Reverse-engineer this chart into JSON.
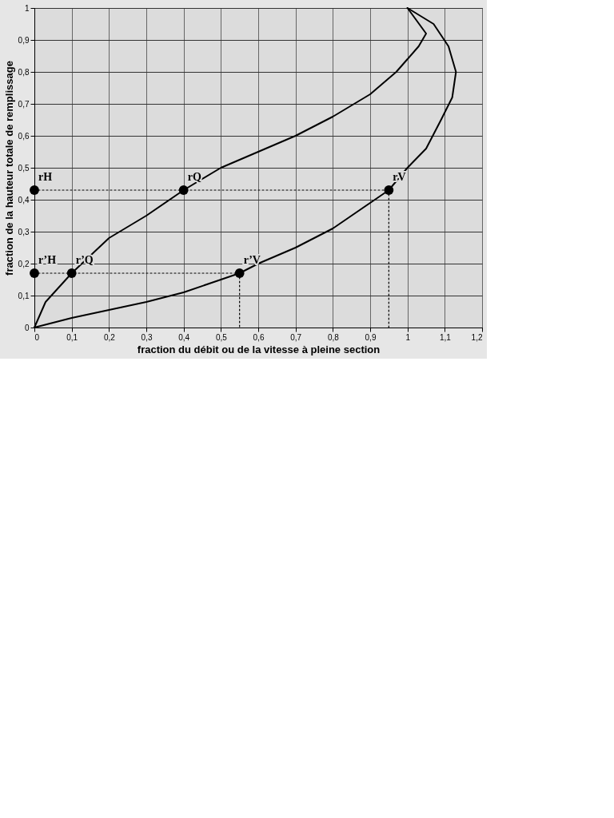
{
  "chart_data": {
    "type": "line",
    "xlabel": "fraction du débit ou de la vitesse à pleine section",
    "ylabel": "fraction de la hauteur totale de remplissage",
    "xlim": [
      0,
      1.2
    ],
    "xticks": [
      0,
      {
        "value": 0.1,
        "label": "0,1"
      },
      {
        "value": 0.2,
        "label": "0,2"
      },
      {
        "value": 0.3,
        "label": "0,3"
      },
      {
        "value": 0.4,
        "label": "0,4"
      },
      {
        "value": 0.5,
        "label": "0,5"
      },
      {
        "value": 0.6,
        "label": "0,6"
      },
      {
        "value": 0.7,
        "label": "0,7"
      },
      {
        "value": 0.8,
        "label": "0,8"
      },
      {
        "value": 0.9,
        "label": "0,9"
      },
      1,
      {
        "value": 1.1,
        "label": "1,1"
      },
      {
        "value": 1.2,
        "label": "1,2"
      }
    ],
    "ylim": [
      0,
      1
    ],
    "yticks": [
      0,
      {
        "value": 0.1,
        "label": "0,1"
      },
      {
        "value": 0.2,
        "label": "0,2"
      },
      {
        "value": 0.3,
        "label": "0,3"
      },
      {
        "value": 0.4,
        "label": "0,4"
      },
      {
        "value": 0.5,
        "label": "0,5"
      },
      {
        "value": 0.6,
        "label": "0,6"
      },
      {
        "value": 0.7,
        "label": "0,7"
      },
      {
        "value": 0.8,
        "label": "0,8"
      },
      {
        "value": 0.9,
        "label": "0,9"
      },
      1
    ],
    "grid": true,
    "series": [
      {
        "color": "#000000",
        "line_style": "solid",
        "x": [
          0,
          0.03,
          0.1,
          0.2,
          0.3,
          0.4,
          0.5,
          0.6,
          0.7,
          0.8,
          0.9,
          0.97,
          1.03,
          1.05,
          1.0
        ],
        "values": [
          0,
          0.08,
          0.17,
          0.28,
          0.35,
          0.43,
          0.5,
          0.55,
          0.6,
          0.66,
          0.73,
          0.8,
          0.88,
          0.92,
          1.0
        ]
      },
      {
        "color": "#000000",
        "line_style": "solid",
        "x": [
          0,
          0.1,
          0.2,
          0.3,
          0.4,
          0.5,
          0.55,
          0.6,
          0.7,
          0.8,
          0.9,
          0.95,
          1.0,
          1.05,
          1.09,
          1.12,
          1.13,
          1.11,
          1.07,
          1.0
        ],
        "values": [
          0,
          0.03,
          0.055,
          0.08,
          0.11,
          0.15,
          0.17,
          0.2,
          0.25,
          0.31,
          0.39,
          0.43,
          0.5,
          0.56,
          0.65,
          0.72,
          0.8,
          0.88,
          0.95,
          1.0
        ]
      },
      {
        "type": "line",
        "color": "#000000",
        "line_style": "dotted",
        "x": [
          0,
          0.95
        ],
        "values": [
          0.43,
          0.43
        ]
      },
      {
        "type": "line",
        "color": "#000000",
        "line_style": "dotted",
        "x": [
          0.95,
          0.95
        ],
        "values": [
          0.43,
          0
        ]
      },
      {
        "type": "line",
        "color": "#000000",
        "line_style": "dotted",
        "x": [
          0,
          0.55
        ],
        "values": [
          0.17,
          0.17
        ]
      },
      {
        "type": "line",
        "color": "#000000",
        "line_style": "dotted",
        "x": [
          0.55,
          0.55
        ],
        "values": [
          0.17,
          0
        ]
      },
      {
        "type": "scatter",
        "color": "#000000",
        "marker": "circle",
        "x": [
          0,
          0.4,
          0.95,
          0,
          0.1,
          0.55
        ],
        "values": [
          0.43,
          0.43,
          0.43,
          0.17,
          0.17,
          0.17
        ]
      }
    ],
    "annotations": [
      {
        "text": "rH",
        "x": 0,
        "y": 0.43
      },
      {
        "text": "rQ",
        "x": 0.4,
        "y": 0.43
      },
      {
        "text": "rV",
        "x": 0.95,
        "y": 0.43
      },
      {
        "text": "r’H",
        "x": 0,
        "y": 0.17
      },
      {
        "text": "r’Q",
        "x": 0.1,
        "y": 0.17
      },
      {
        "text": "r’V",
        "x": 0.55,
        "y": 0.17
      }
    ]
  }
}
